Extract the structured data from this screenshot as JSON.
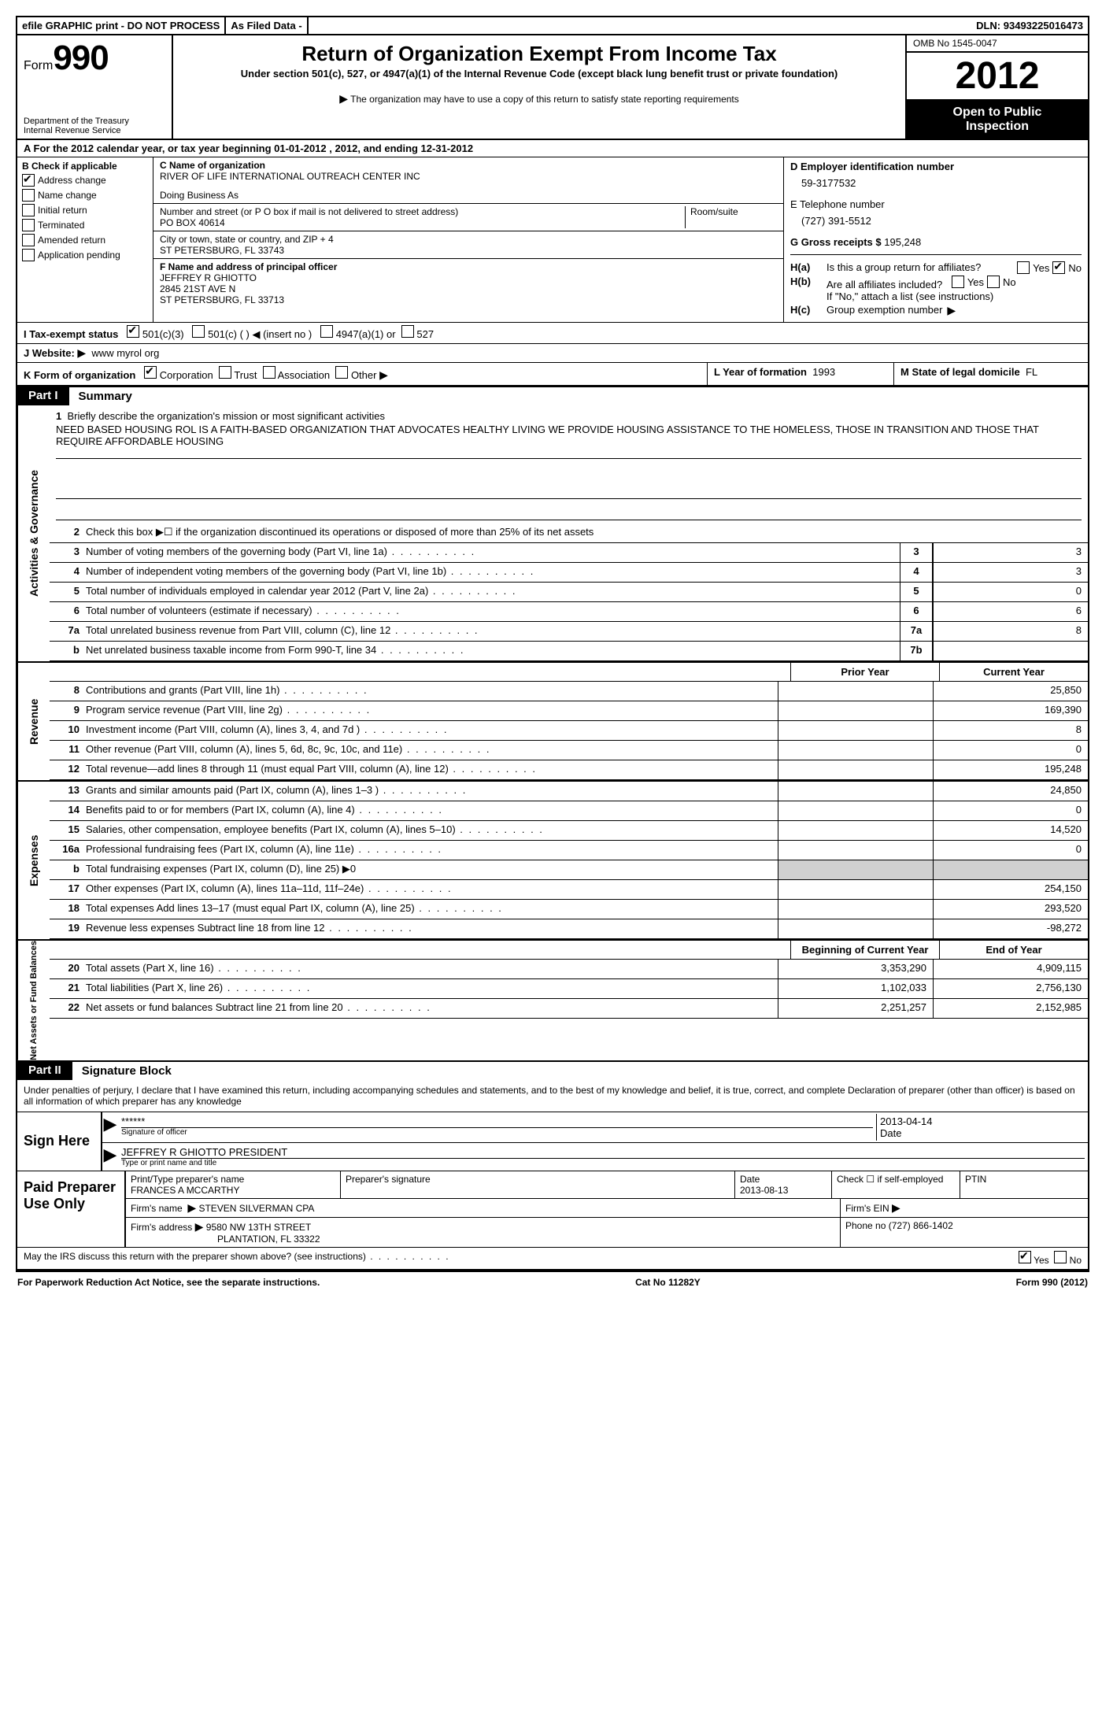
{
  "topbar": {
    "efile": "efile GRAPHIC print - DO NOT PROCESS",
    "asfiled": "As Filed Data -",
    "dln_label": "DLN:",
    "dln": "93493225016473"
  },
  "header": {
    "form": "Form",
    "formnum": "990",
    "dept1": "Department of the Treasury",
    "dept2": "Internal Revenue Service",
    "title": "Return of Organization Exempt From Income Tax",
    "subtitle": "Under section 501(c), 527, or 4947(a)(1) of the Internal Revenue Code (except black lung benefit trust or private foundation)",
    "note": "The organization may have to use a copy of this return to satisfy state reporting requirements",
    "omb": "OMB No 1545-0047",
    "year": "2012",
    "open1": "Open to Public",
    "open2": "Inspection"
  },
  "rowA": "A For the 2012 calendar year, or tax year beginning 01-01-2012    , 2012, and ending 12-31-2012",
  "colB": {
    "label": "B Check if applicable",
    "addr": "Address change",
    "name": "Name change",
    "init": "Initial return",
    "term": "Terminated",
    "amend": "Amended return",
    "app": "Application pending"
  },
  "colC": {
    "nameLabel": "C Name of organization",
    "name": "RIVER OF LIFE INTERNATIONAL OUTREACH CENTER INC",
    "dba": "Doing Business As",
    "addrLabel": "Number and street (or P O  box if mail is not delivered to street address)",
    "room": "Room/suite",
    "addr": "PO BOX 40614",
    "cityLabel": "City or town, state or country, and ZIP + 4",
    "city": "ST PETERSBURG, FL  33743",
    "fLabel": "F   Name and address of principal officer",
    "f1": "JEFFREY R GHIOTTO",
    "f2": "2845 21ST AVE N",
    "f3": "ST PETERSBURG, FL  33713"
  },
  "colD": {
    "dLabel": "D Employer identification number",
    "ein": "59-3177532",
    "eLabel": "E Telephone number",
    "phone": "(727) 391-5512",
    "gLabel": "G Gross receipts $",
    "gross": "195,248",
    "haLabel": "Is this a group return for affiliates?",
    "ha": "H(a)",
    "hbLabel": "Are all affiliates included?",
    "hb": "H(b)",
    "hbNote": "If \"No,\" attach a list  (see instructions)",
    "hc": "H(c)",
    "hcLabel": "Group exemption number",
    "yes": "Yes",
    "no": "No"
  },
  "rowI": {
    "label": "I   Tax-exempt status",
    "o1": "501(c)(3)",
    "o2": "501(c) (   )",
    "insert": "(insert no )",
    "o3": "4947(a)(1) or",
    "o4": "527"
  },
  "rowJ": {
    "label": "J   Website:",
    "val": "www myrol org"
  },
  "rowK": {
    "label": "K Form of organization",
    "corp": "Corporation",
    "trust": "Trust",
    "assoc": "Association",
    "other": "Other",
    "lLabel": "L Year of formation",
    "lVal": "1993",
    "mLabel": "M State of legal domicile",
    "mVal": "FL"
  },
  "parts": {
    "p1": "Part I",
    "p1t": "Summary",
    "p2": "Part II",
    "p2t": "Signature Block"
  },
  "summary": {
    "s1label": "Briefly describe the organization's mission or most significant activities",
    "s1text": "NEED BASED HOUSING ROL IS A FAITH-BASED ORGANIZATION THAT ADVOCATES HEALTHY LIVING  WE PROVIDE HOUSING ASSISTANCE TO THE HOMELESS, THOSE IN TRANSITION AND THOSE THAT REQUIRE AFFORDABLE HOUSING",
    "s2": "Check this box ▶☐ if the organization discontinued its operations or disposed of more than 25% of its net assets",
    "lines_gov": [
      {
        "n": "3",
        "d": "Number of voting members of the governing body (Part VI, line 1a)",
        "box": "3",
        "v": "3"
      },
      {
        "n": "4",
        "d": "Number of independent voting members of the governing body (Part VI, line 1b)",
        "box": "4",
        "v": "3"
      },
      {
        "n": "5",
        "d": "Total number of individuals employed in calendar year 2012 (Part V, line 2a)",
        "box": "5",
        "v": "0"
      },
      {
        "n": "6",
        "d": "Total number of volunteers (estimate if necessary)",
        "box": "6",
        "v": "6"
      },
      {
        "n": "7a",
        "d": "Total unrelated business revenue from Part VIII, column (C), line 12",
        "box": "7a",
        "v": "8"
      },
      {
        "n": "b",
        "d": "Net unrelated business taxable income from Form 990-T, line 34",
        "box": "7b",
        "v": ""
      }
    ],
    "hPrior": "Prior Year",
    "hCurr": "Current Year",
    "rev": [
      {
        "n": "8",
        "d": "Contributions and grants (Part VIII, line 1h)",
        "p": "",
        "c": "25,850"
      },
      {
        "n": "9",
        "d": "Program service revenue (Part VIII, line 2g)",
        "p": "",
        "c": "169,390"
      },
      {
        "n": "10",
        "d": "Investment income (Part VIII, column (A), lines 3, 4, and 7d )",
        "p": "",
        "c": "8"
      },
      {
        "n": "11",
        "d": "Other revenue (Part VIII, column (A), lines 5, 6d, 8c, 9c, 10c, and 11e)",
        "p": "",
        "c": "0"
      },
      {
        "n": "12",
        "d": "Total revenue—add lines 8 through 11 (must equal Part VIII, column (A), line 12)",
        "p": "",
        "c": "195,248"
      }
    ],
    "exp": [
      {
        "n": "13",
        "d": "Grants and similar amounts paid (Part IX, column (A), lines 1–3 )",
        "p": "",
        "c": "24,850"
      },
      {
        "n": "14",
        "d": "Benefits paid to or for members (Part IX, column (A), line 4)",
        "p": "",
        "c": "0"
      },
      {
        "n": "15",
        "d": "Salaries, other compensation, employee benefits (Part IX, column (A), lines 5–10)",
        "p": "",
        "c": "14,520"
      },
      {
        "n": "16a",
        "d": "Professional fundraising fees (Part IX, column (A), line 11e)",
        "p": "",
        "c": "0"
      },
      {
        "n": "b",
        "d": "Total fundraising expenses (Part IX, column (D), line 25) ▶0",
        "p": "",
        "c": ""
      },
      {
        "n": "17",
        "d": "Other expenses (Part IX, column (A), lines 11a–11d, 11f–24e)",
        "p": "",
        "c": "254,150"
      },
      {
        "n": "18",
        "d": "Total expenses  Add lines 13–17 (must equal Part IX, column (A), line 25)",
        "p": "",
        "c": "293,520"
      },
      {
        "n": "19",
        "d": "Revenue less expenses  Subtract line 18 from line 12",
        "p": "",
        "c": "-98,272"
      }
    ],
    "hBeg": "Beginning of Current Year",
    "hEnd": "End of Year",
    "net": [
      {
        "n": "20",
        "d": "Total assets (Part X, line 16)",
        "p": "3,353,290",
        "c": "4,909,115"
      },
      {
        "n": "21",
        "d": "Total liabilities (Part X, line 26)",
        "p": "1,102,033",
        "c": "2,756,130"
      },
      {
        "n": "22",
        "d": "Net assets or fund balances  Subtract line 21 from line 20",
        "p": "2,251,257",
        "c": "2,152,985"
      }
    ],
    "vlabels": {
      "gov": "Activities & Governance",
      "rev": "Revenue",
      "exp": "Expenses",
      "net": "Net Assets or Fund Balances"
    }
  },
  "sig": {
    "decl": "Under penalties of perjury, I declare that I have examined this return, including accompanying schedules and statements, and to the best of my knowledge and belief, it is true, correct, and complete  Declaration of preparer (other than officer) is based on all information of which preparer has any knowledge",
    "signHere": "Sign Here",
    "stars": "******",
    "sigOfficer": "Signature of officer",
    "date1": "2013-04-14",
    "dateL": "Date",
    "name": "JEFFREY R GHIOTTO PRESIDENT",
    "nameL": "Type or print name and title",
    "paid": "Paid Preparer Use Only",
    "prepName": "Print/Type preparer's name",
    "prepNameV": "FRANCES A MCCARTHY",
    "prepSig": "Preparer's signature",
    "date2": "2013-08-13",
    "checkSelf": "Check ☐ if self-employed",
    "ptin": "PTIN",
    "firmName": "Firm's name",
    "firmNameV": "STEVEN SILVERMAN CPA",
    "firmEin": "Firm's EIN",
    "firmAddr": "Firm's address",
    "firmAddrV1": "9580 NW 13TH STREET",
    "firmAddrV2": "PLANTATION, FL  33322",
    "phone": "Phone no  (727) 866-1402",
    "discuss": "May the IRS discuss this return with the preparer shown above? (see instructions)",
    "yes": "Yes",
    "no": "No"
  },
  "footer": {
    "left": "For Paperwork Reduction Act Notice, see the separate instructions.",
    "mid": "Cat No  11282Y",
    "right": "Form 990 (2012)"
  }
}
